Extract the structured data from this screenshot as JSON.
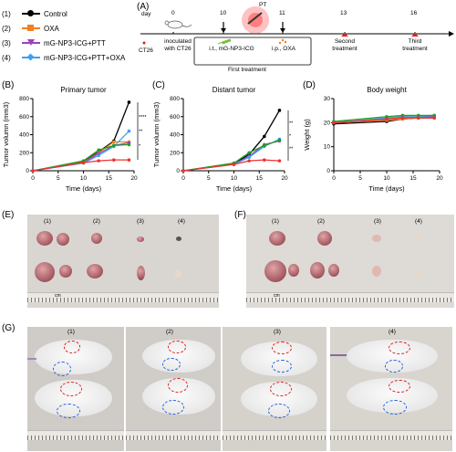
{
  "legend": [
    {
      "num": "(1)",
      "label": "Control",
      "color": "#000000",
      "marker": "circle"
    },
    {
      "num": "(2)",
      "label": "OXA",
      "color": "#f08020",
      "marker": "square"
    },
    {
      "num": "(3)",
      "label": "mG-NP3-ICG+PTT",
      "color": "#a040c0",
      "marker": "triangle"
    },
    {
      "num": "(4)",
      "label": "mG-NP3-ICG+PTT+OXA",
      "color": "#40a0f0",
      "marker": "diamond"
    }
  ],
  "panelA": {
    "letter": "(A)",
    "day_label": "day",
    "days": [
      "0",
      "10",
      "11",
      "13",
      "16"
    ],
    "pt_label": "PT",
    "ct26_label": "CT26",
    "inoculated": "inoculated with CT26",
    "it_label": "i.t., mG-NP3-ICG",
    "ip_label": "i.p., OXA",
    "first_treatment": "First treatment",
    "second_treatment": "Second treatment",
    "third_treatment": "Third treatment"
  },
  "chart_data": [
    {
      "type": "line",
      "panel": "(B)",
      "title": "Primary tumor",
      "xlabel": "Time (days)",
      "ylabel": "Tumor volumn (mm3)",
      "x": [
        0,
        10,
        13,
        16,
        19
      ],
      "xlim": [
        0,
        20
      ],
      "ylim": [
        0,
        800
      ],
      "xticks": [
        "0",
        "5",
        "10",
        "15",
        "20"
      ],
      "yticks": [
        "0",
        "200",
        "400",
        "600",
        "800"
      ],
      "series": [
        {
          "name": "Control",
          "color": "#000000",
          "values": [
            0,
            100,
            210,
            330,
            760
          ]
        },
        {
          "name": "OXA",
          "color": "#f08020",
          "values": [
            0,
            95,
            200,
            320,
            320
          ]
        },
        {
          "name": "mG-NP3-ICG+PTT",
          "color": "#a040c0",
          "values": [
            0,
            90,
            190,
            280,
            310
          ]
        },
        {
          "name": "mG-NP3-ICG+PTT+OXA",
          "color": "#40a0f0",
          "values": [
            0,
            85,
            170,
            270,
            440
          ]
        },
        {
          "name": "green",
          "color": "#20a020",
          "values": [
            0,
            110,
            230,
            280,
            290
          ]
        },
        {
          "name": "red",
          "color": "#f03030",
          "values": [
            0,
            90,
            110,
            120,
            120
          ]
        }
      ],
      "sig": [
        "****",
        "**",
        "*"
      ]
    },
    {
      "type": "line",
      "panel": "(C)",
      "title": "Distant tumor",
      "xlabel": "Time (days)",
      "ylabel": "Tumor volumn (mm3)",
      "x": [
        0,
        10,
        13,
        16,
        19
      ],
      "xlim": [
        0,
        20
      ],
      "ylim": [
        0,
        800
      ],
      "xticks": [
        "0",
        "5",
        "10",
        "15",
        "20"
      ],
      "yticks": [
        "0",
        "200",
        "400",
        "600",
        "800"
      ],
      "series": [
        {
          "name": "Control",
          "color": "#000000",
          "values": [
            0,
            80,
            180,
            380,
            670
          ]
        },
        {
          "name": "mG-NP3-ICG+PTT",
          "color": "#a040c0",
          "values": [
            0,
            75,
            160,
            290,
            330
          ]
        },
        {
          "name": "mG-NP3-ICG+PTT+OXA",
          "color": "#40a0f0",
          "values": [
            0,
            70,
            150,
            270,
            350
          ]
        },
        {
          "name": "green",
          "color": "#20a020",
          "values": [
            0,
            85,
            200,
            280,
            340
          ]
        },
        {
          "name": "red",
          "color": "#f03030",
          "values": [
            0,
            70,
            110,
            120,
            110
          ]
        }
      ],
      "sig": [
        "**",
        "*",
        "**"
      ]
    },
    {
      "type": "line",
      "panel": "(D)",
      "title": "Body weight",
      "xlabel": "Time (days)",
      "ylabel": "Weight (g)",
      "x": [
        0,
        10,
        13,
        16,
        19
      ],
      "xlim": [
        0,
        20
      ],
      "ylim": [
        0,
        30
      ],
      "xticks": [
        "0",
        "5",
        "10",
        "15",
        "20"
      ],
      "yticks": [
        "0",
        "10",
        "20",
        "30"
      ],
      "series": [
        {
          "name": "Control",
          "color": "#000000",
          "values": [
            19.5,
            20.5,
            21.5,
            22,
            22
          ]
        },
        {
          "name": "OXA",
          "color": "#f08020",
          "values": [
            20,
            21,
            21.5,
            22,
            22
          ]
        },
        {
          "name": "mG-NP3-ICG+PTT",
          "color": "#a040c0",
          "values": [
            20,
            21.5,
            22,
            22.5,
            22.5
          ]
        },
        {
          "name": "mG-NP3-ICG+PTT+OXA",
          "color": "#40a0f0",
          "values": [
            20,
            22,
            22.5,
            22.5,
            23
          ]
        },
        {
          "name": "green",
          "color": "#20a020",
          "values": [
            20.5,
            22.5,
            23,
            23,
            23
          ]
        },
        {
          "name": "red",
          "color": "#f03030",
          "values": [
            20,
            21.5,
            22,
            22,
            22
          ]
        }
      ]
    }
  ],
  "panelE": {
    "letter": "(E)",
    "groups": [
      "(1)",
      "(2)",
      "(3)",
      "(4)"
    ]
  },
  "panelF": {
    "letter": "(F)",
    "groups": [
      "(1)",
      "(2)",
      "(3)",
      "(4)"
    ]
  },
  "panelG": {
    "letter": "(G)",
    "groups": [
      "(1)",
      "(2)",
      "(3)",
      "(4)"
    ]
  },
  "ruler_label": "cm"
}
